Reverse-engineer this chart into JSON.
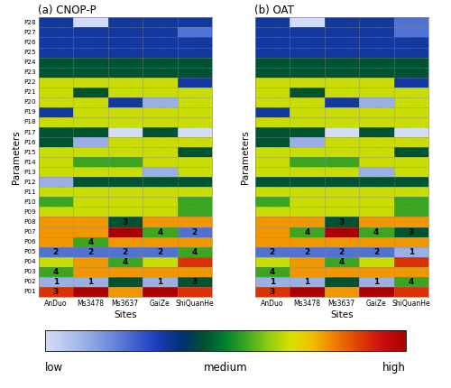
{
  "title_a": "(a) CNOP-P",
  "title_b": "(b) OAT",
  "sites": [
    "AnDuo",
    "Ms3478",
    "Ms3637",
    "GaiZe",
    "ShiQuanHe"
  ],
  "params": [
    "P01",
    "P02",
    "P03",
    "P04",
    "P05",
    "P06",
    "P07",
    "P08",
    "P09",
    "P10",
    "P11",
    "P12",
    "P13",
    "P14",
    "P15",
    "P16",
    "P17",
    "P18",
    "P19",
    "P20",
    "P21",
    "P22",
    "P23",
    "P24",
    "P25",
    "P26",
    "P27",
    "P28"
  ],
  "cnop_values": [
    [
      8,
      9,
      7,
      9,
      8
    ],
    [
      1,
      1,
      4,
      1,
      4
    ],
    [
      5,
      7,
      7,
      7,
      7
    ],
    [
      6,
      7,
      5,
      6,
      8
    ],
    [
      2,
      2,
      2,
      2,
      5
    ],
    [
      7,
      5,
      7,
      7,
      7
    ],
    [
      7,
      7,
      9,
      5,
      2
    ],
    [
      7,
      7,
      4,
      7,
      7
    ],
    [
      6,
      6,
      6,
      6,
      5
    ],
    [
      5,
      6,
      6,
      6,
      5
    ],
    [
      6,
      6,
      6,
      6,
      6
    ],
    [
      1,
      4,
      4,
      4,
      4
    ],
    [
      6,
      6,
      6,
      1,
      6
    ],
    [
      6,
      5,
      5,
      6,
      6
    ],
    [
      6,
      6,
      6,
      6,
      4
    ],
    [
      4,
      1,
      6,
      6,
      6
    ],
    [
      4,
      4,
      0,
      4,
      0
    ],
    [
      6,
      6,
      6,
      6,
      6
    ],
    [
      3,
      6,
      6,
      6,
      6
    ],
    [
      6,
      6,
      3,
      1,
      6
    ],
    [
      6,
      4,
      6,
      6,
      6
    ],
    [
      6,
      6,
      6,
      6,
      3
    ],
    [
      4,
      4,
      4,
      4,
      4
    ],
    [
      4,
      4,
      4,
      4,
      4
    ],
    [
      3,
      3,
      3,
      3,
      3
    ],
    [
      3,
      3,
      3,
      3,
      3
    ],
    [
      3,
      3,
      3,
      3,
      2
    ],
    [
      3,
      0,
      3,
      3,
      3
    ]
  ],
  "oat_values": [
    [
      8,
      9,
      7,
      9,
      8
    ],
    [
      1,
      1,
      4,
      1,
      5
    ],
    [
      5,
      7,
      7,
      7,
      7
    ],
    [
      6,
      7,
      5,
      6,
      8
    ],
    [
      2,
      2,
      2,
      2,
      1
    ],
    [
      7,
      7,
      7,
      7,
      7
    ],
    [
      7,
      5,
      9,
      5,
      4
    ],
    [
      7,
      7,
      4,
      7,
      7
    ],
    [
      6,
      6,
      6,
      6,
      5
    ],
    [
      5,
      6,
      6,
      6,
      5
    ],
    [
      6,
      6,
      6,
      6,
      6
    ],
    [
      4,
      4,
      4,
      4,
      4
    ],
    [
      6,
      6,
      6,
      1,
      6
    ],
    [
      6,
      5,
      5,
      6,
      6
    ],
    [
      6,
      6,
      6,
      6,
      4
    ],
    [
      4,
      1,
      6,
      6,
      6
    ],
    [
      4,
      4,
      0,
      4,
      0
    ],
    [
      6,
      6,
      6,
      6,
      6
    ],
    [
      3,
      6,
      6,
      6,
      6
    ],
    [
      6,
      6,
      3,
      1,
      6
    ],
    [
      6,
      4,
      6,
      6,
      6
    ],
    [
      6,
      6,
      6,
      6,
      3
    ],
    [
      4,
      4,
      4,
      4,
      4
    ],
    [
      4,
      4,
      4,
      4,
      4
    ],
    [
      3,
      3,
      3,
      3,
      3
    ],
    [
      3,
      3,
      3,
      3,
      3
    ],
    [
      3,
      3,
      3,
      3,
      2
    ],
    [
      3,
      0,
      3,
      3,
      2
    ]
  ],
  "cnop_labels": [
    [
      3,
      -1,
      -1,
      -1,
      -1
    ],
    [
      1,
      1,
      -1,
      1,
      3
    ],
    [
      4,
      -1,
      -1,
      -1,
      -1
    ],
    [
      -1,
      -1,
      4,
      -1,
      -1
    ],
    [
      2,
      2,
      2,
      2,
      4
    ],
    [
      -1,
      4,
      -1,
      -1,
      -1
    ],
    [
      -1,
      -1,
      -1,
      4,
      2
    ],
    [
      -1,
      -1,
      3,
      -1,
      -1
    ],
    [
      -1,
      -1,
      -1,
      -1,
      -1
    ],
    [
      -1,
      -1,
      -1,
      -1,
      -1
    ],
    [
      -1,
      -1,
      -1,
      -1,
      -1
    ],
    [
      -1,
      -1,
      -1,
      -1,
      -1
    ],
    [
      -1,
      -1,
      -1,
      -1,
      -1
    ],
    [
      -1,
      -1,
      -1,
      -1,
      -1
    ],
    [
      -1,
      -1,
      -1,
      -1,
      -1
    ],
    [
      -1,
      -1,
      -1,
      -1,
      -1
    ],
    [
      -1,
      -1,
      -1,
      -1,
      -1
    ],
    [
      -1,
      -1,
      -1,
      -1,
      -1
    ],
    [
      -1,
      -1,
      -1,
      -1,
      -1
    ],
    [
      -1,
      -1,
      -1,
      -1,
      -1
    ],
    [
      -1,
      -1,
      -1,
      -1,
      -1
    ],
    [
      -1,
      -1,
      -1,
      -1,
      -1
    ],
    [
      -1,
      -1,
      -1,
      -1,
      -1
    ],
    [
      -1,
      -1,
      -1,
      -1,
      -1
    ],
    [
      -1,
      -1,
      -1,
      -1,
      -1
    ],
    [
      -1,
      -1,
      -1,
      -1,
      -1
    ],
    [
      -1,
      -1,
      -1,
      -1,
      -1
    ],
    [
      -1,
      -1,
      -1,
      -1,
      -1
    ]
  ],
  "oat_labels": [
    [
      3,
      -1,
      -1,
      -1,
      -1
    ],
    [
      1,
      1,
      -1,
      1,
      4
    ],
    [
      4,
      -1,
      -1,
      -1,
      -1
    ],
    [
      -1,
      -1,
      4,
      -1,
      -1
    ],
    [
      2,
      2,
      2,
      2,
      1
    ],
    [
      -1,
      -1,
      -1,
      -1,
      -1
    ],
    [
      -1,
      4,
      -1,
      4,
      3
    ],
    [
      -1,
      -1,
      3,
      -1,
      -1
    ],
    [
      -1,
      -1,
      -1,
      -1,
      -1
    ],
    [
      -1,
      -1,
      -1,
      -1,
      -1
    ],
    [
      -1,
      -1,
      -1,
      -1,
      -1
    ],
    [
      -1,
      -1,
      -1,
      -1,
      -1
    ],
    [
      -1,
      -1,
      -1,
      -1,
      -1
    ],
    [
      -1,
      -1,
      -1,
      -1,
      -1
    ],
    [
      -1,
      -1,
      -1,
      -1,
      -1
    ],
    [
      -1,
      -1,
      -1,
      -1,
      -1
    ],
    [
      -1,
      -1,
      -1,
      -1,
      -1
    ],
    [
      -1,
      -1,
      -1,
      -1,
      -1
    ],
    [
      -1,
      -1,
      -1,
      -1,
      -1
    ],
    [
      -1,
      -1,
      -1,
      -1,
      -1
    ],
    [
      -1,
      -1,
      -1,
      -1,
      -1
    ],
    [
      -1,
      -1,
      -1,
      -1,
      -1
    ],
    [
      -1,
      -1,
      -1,
      -1,
      -1
    ],
    [
      -1,
      -1,
      -1,
      -1,
      -1
    ],
    [
      -1,
      -1,
      -1,
      -1,
      -1
    ],
    [
      -1,
      -1,
      -1,
      -1,
      -1
    ],
    [
      -1,
      -1,
      -1,
      -1,
      -1
    ],
    [
      -1,
      -1,
      -1,
      -1,
      -1
    ]
  ],
  "vmax": 9,
  "colormap_nodes": [
    [
      0.0,
      "#d4ddf7"
    ],
    [
      0.1,
      "#a0b4e8"
    ],
    [
      0.2,
      "#6080d8"
    ],
    [
      0.3,
      "#2040c0"
    ],
    [
      0.38,
      "#003070"
    ],
    [
      0.44,
      "#005030"
    ],
    [
      0.5,
      "#008030"
    ],
    [
      0.56,
      "#40a820"
    ],
    [
      0.62,
      "#90cc10"
    ],
    [
      0.68,
      "#d8e000"
    ],
    [
      0.74,
      "#f0c000"
    ],
    [
      0.8,
      "#f08000"
    ],
    [
      0.87,
      "#e04000"
    ],
    [
      0.93,
      "#cc1010"
    ],
    [
      1.0,
      "#aa0000"
    ]
  ]
}
